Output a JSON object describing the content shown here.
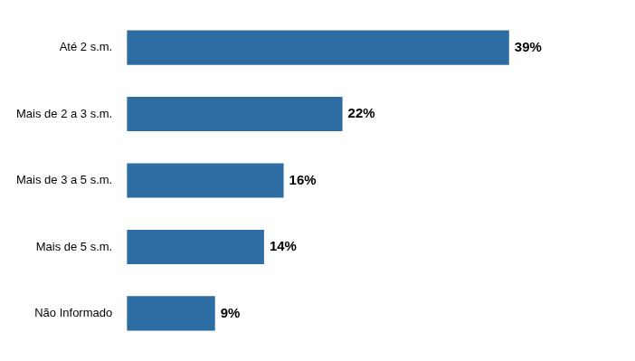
{
  "chart_data": {
    "type": "bar",
    "orientation": "horizontal",
    "categories": [
      "Até 2 s.m.",
      "Mais de 2 a 3 s.m.",
      "Mais de 3 a 5 s.m.",
      "Mais de 5 s.m.",
      "Não Informado"
    ],
    "values": [
      39,
      22,
      16,
      14,
      9
    ],
    "value_labels": [
      "39%",
      "22%",
      "16%",
      "14%",
      "9%"
    ],
    "data_labels": true,
    "color": "#2E6DA4",
    "xlim": [
      0,
      50
    ],
    "grid": false,
    "tick_labels": "y"
  }
}
